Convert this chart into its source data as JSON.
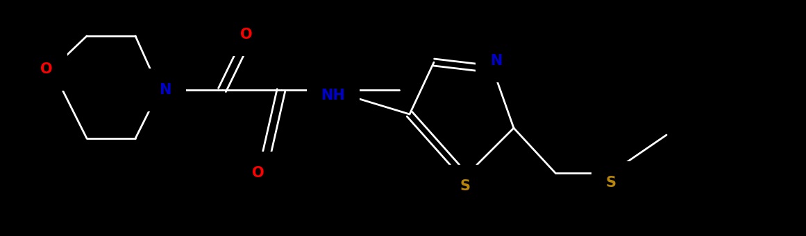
{
  "background_color": "#000000",
  "bond_color": "#ffffff",
  "atom_colors": {
    "N": "#0000cc",
    "O": "#ff0000",
    "S": "#b8860b",
    "NH": "#0000cc",
    "C": "#ffffff"
  },
  "figsize": [
    11.61,
    3.41
  ],
  "dpi": 100,
  "bond_lw": 2.0,
  "font_size": 15
}
